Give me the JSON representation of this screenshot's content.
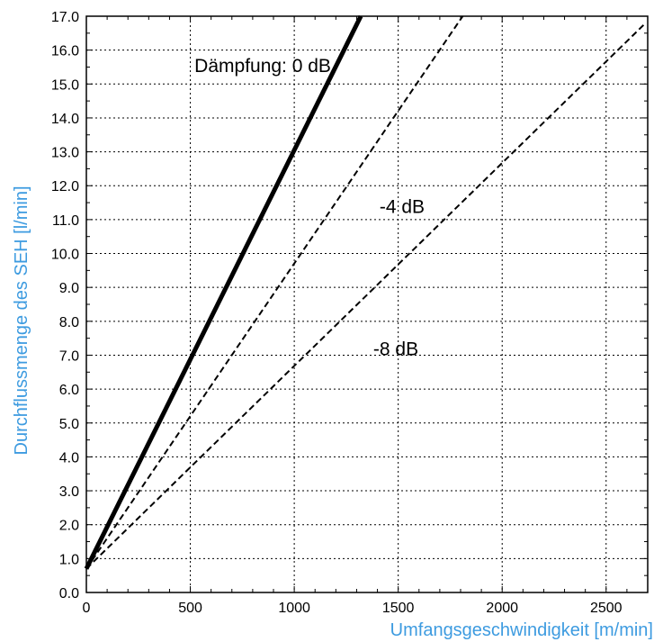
{
  "chart_data": {
    "type": "line",
    "xlabel": "Umfangsgeschwindigkeit [m/min]",
    "ylabel": "Durchflussmenge des SEH [l/min]",
    "xlim": [
      0,
      2700
    ],
    "ylim": [
      0.0,
      17.0
    ],
    "x_ticks": [
      0,
      500,
      1000,
      1500,
      2000,
      2500
    ],
    "y_ticks": [
      0.0,
      1.0,
      2.0,
      3.0,
      4.0,
      5.0,
      6.0,
      7.0,
      8.0,
      9.0,
      10.0,
      11.0,
      12.0,
      13.0,
      14.0,
      15.0,
      16.0,
      17.0
    ],
    "x_tick_labels": [
      "0",
      "500",
      "1000",
      "1500",
      "2000",
      "2500"
    ],
    "y_tick_labels": [
      "0.0",
      "1.0",
      "2.0",
      "3.0",
      "4.0",
      "5.0",
      "6.0",
      "7.0",
      "8.0",
      "9.0",
      "10.0",
      "11.0",
      "12.0",
      "13.0",
      "14.0",
      "15.0",
      "16.0",
      "17.0"
    ],
    "grid": true,
    "grid_style": "dotted",
    "axis_title_color": "#3d9be0",
    "series": [
      {
        "x": [
          0,
          1320
        ],
        "y": [
          0.7,
          17.0
        ],
        "style": "solid-bold",
        "color": "#000000"
      },
      {
        "x": [
          0,
          1810
        ],
        "y": [
          0.7,
          17.0
        ],
        "style": "dashed",
        "color": "#000000"
      },
      {
        "x": [
          0,
          2690
        ],
        "y": [
          0.7,
          16.8
        ],
        "style": "dashed",
        "color": "#000000"
      }
    ],
    "annotations": [
      {
        "text": "Dämpfung: 0 dB",
        "x": 520,
        "y": 15.35
      },
      {
        "text": "-4 dB",
        "x": 1410,
        "y": 11.2
      },
      {
        "text": "-8 dB",
        "x": 1380,
        "y": 7.0
      }
    ]
  }
}
